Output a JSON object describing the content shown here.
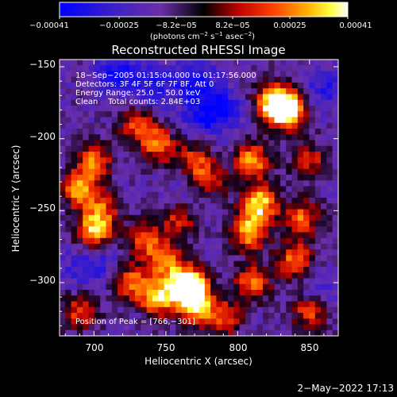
{
  "chart_data": {
    "type": "heatmap",
    "title": "Reconstructed RHESSI Image",
    "xlabel": "Heliocentric X (arcsec)",
    "ylabel": "Heliocentric Y (arcsec)",
    "xlim": [
      676,
      870
    ],
    "ylim": [
      -337,
      -145
    ],
    "x_ticks": [
      700,
      750,
      800,
      850
    ],
    "y_ticks": [
      -150,
      -200,
      -250,
      -300
    ],
    "x_tick_labels": [
      "700",
      "750",
      "800",
      "850"
    ],
    "y_tick_labels": [
      "−150",
      "−200",
      "−250",
      "−300"
    ],
    "colorbar": {
      "range": [
        -0.00041,
        0.00041
      ],
      "tick_labels": [
        "−0.00041",
        "−0.00025",
        "−8.2e−05",
        "8.2e−05",
        "0.00025",
        "0.00041"
      ],
      "unit_prefix": "(photons cm",
      "unit_exp1": "−2",
      "unit_mid": " s",
      "unit_exp2": "−1",
      "unit_mid2": " asec",
      "unit_exp3": "−2",
      "unit_suffix": ")",
      "colors": [
        "#0000ff",
        "#4b0082",
        "#6b2fa8",
        "#000000",
        "#ff0000",
        "#ff8000",
        "#ffff00",
        "#ffffff"
      ]
    },
    "annotations": [
      "18−Sep−2005 01:15:04.000 to 01:17:56.000",
      "Detectors: 3F 4F 5F 6F 7F 8F, Att 0",
      "Energy Range: 25.0 − 50.0 keV",
      "Clean    Total counts: 2.84E+03"
    ],
    "peak_label": "Position of Peak = [766,−301]",
    "peak": [
      766,
      -301
    ],
    "hotspots": [
      {
        "x": 835,
        "y": -180,
        "v": 1.0
      },
      {
        "x": 825,
        "y": -175,
        "v": 0.8
      },
      {
        "x": 810,
        "y": -215,
        "v": 0.7
      },
      {
        "x": 815,
        "y": -245,
        "v": 0.85
      },
      {
        "x": 808,
        "y": -265,
        "v": 0.75
      },
      {
        "x": 845,
        "y": -255,
        "v": 0.6
      },
      {
        "x": 840,
        "y": -285,
        "v": 0.65
      },
      {
        "x": 850,
        "y": -320,
        "v": 0.55
      },
      {
        "x": 810,
        "y": -300,
        "v": 0.6
      },
      {
        "x": 790,
        "y": -325,
        "v": 0.55
      },
      {
        "x": 766,
        "y": -301,
        "v": 1.0
      },
      {
        "x": 770,
        "y": -315,
        "v": 0.85
      },
      {
        "x": 745,
        "y": -310,
        "v": 0.8
      },
      {
        "x": 725,
        "y": -300,
        "v": 0.6
      },
      {
        "x": 750,
        "y": -285,
        "v": 0.6
      },
      {
        "x": 735,
        "y": -270,
        "v": 0.55
      },
      {
        "x": 700,
        "y": -265,
        "v": 0.7
      },
      {
        "x": 690,
        "y": -235,
        "v": 0.7
      },
      {
        "x": 700,
        "y": -215,
        "v": 0.6
      },
      {
        "x": 730,
        "y": -190,
        "v": 0.55
      },
      {
        "x": 745,
        "y": -205,
        "v": 0.6
      },
      {
        "x": 770,
        "y": -215,
        "v": 0.5
      },
      {
        "x": 780,
        "y": -230,
        "v": 0.45
      },
      {
        "x": 690,
        "y": -320,
        "v": 0.5
      },
      {
        "x": 760,
        "y": -255,
        "v": 0.5
      },
      {
        "x": 850,
        "y": -215,
        "v": 0.45
      },
      {
        "x": 705,
        "y": -250,
        "v": 0.5
      }
    ],
    "coldspots": [
      {
        "x": 715,
        "y": -155,
        "v": 0.9
      },
      {
        "x": 770,
        "y": -160,
        "v": 0.9
      },
      {
        "x": 740,
        "y": -165,
        "v": 0.8
      },
      {
        "x": 790,
        "y": -180,
        "v": 0.8
      },
      {
        "x": 860,
        "y": -165,
        "v": 0.6
      },
      {
        "x": 775,
        "y": -185,
        "v": 0.7
      },
      {
        "x": 765,
        "y": -240,
        "v": 0.5
      },
      {
        "x": 690,
        "y": -290,
        "v": 0.4
      },
      {
        "x": 705,
        "y": -285,
        "v": 0.5
      },
      {
        "x": 855,
        "y": -305,
        "v": 0.5
      }
    ]
  },
  "footer": {
    "date": "2−May−2022 17:13"
  }
}
